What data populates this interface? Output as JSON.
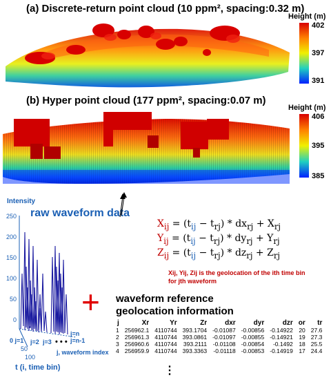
{
  "panel_a": {
    "title": "(a) Discrete-return point cloud (10 ppm², spacing:0.32 m)",
    "colorbar": {
      "label": "Height (m)",
      "ticks": [
        "402",
        "397",
        "391"
      ]
    }
  },
  "panel_b": {
    "title": "(b) Hyper point cloud (177 ppm², spacing:0.07 m)",
    "colorbar": {
      "label": "Height (m)",
      "ticks": [
        "406",
        "395",
        "385"
      ]
    }
  },
  "waveform": {
    "y_label": "Intensity",
    "y_ticks": [
      "250",
      "200",
      "150",
      "100",
      "50",
      "0"
    ],
    "x_ticks": [
      "0",
      "50",
      "100"
    ],
    "x_label": "t (i, time bin)",
    "j_labels": {
      "j1": "j=1",
      "j2": "j=2",
      "j3": "j=3",
      "jn": "j=n",
      "jn1": "j=n-1",
      "dots": "• • •"
    },
    "j_axis_label": "j, waveform index",
    "callout": "raw waveform data"
  },
  "equations": {
    "x": {
      "lhs": "X",
      "sub": "ij",
      "rest": " = (t",
      "t1sub": "ij",
      "minus": " − t",
      "t2sub": "rj",
      "d": ") * dx",
      "dsub": "rj",
      "plus": " + X",
      "psub": "rj"
    },
    "y": {
      "lhs": "Y",
      "sub": "ij",
      "rest": " = (t",
      "t1sub": "ij",
      "minus": " − t",
      "t2sub": "rj",
      "d": ") * dy",
      "dsub": "rj",
      "plus": " + Y",
      "psub": "rj"
    },
    "z": {
      "lhs": "Z",
      "sub": "ij",
      "rest": " = (t",
      "t1sub": "ij",
      "minus": " − t",
      "t2sub": "rj",
      "d": ") * dz",
      "dsub": "rj",
      "plus": " + Z",
      "psub": "rj"
    },
    "note_line1": "Xij, Yij, Zij is the geolocation of the ith time bin",
    "note_line2": "for jth waveform"
  },
  "reference": {
    "plus_sign": "+",
    "title_line1": "waveform reference",
    "title_line2": "geolocation information",
    "columns": [
      "j",
      "Xr",
      "Yr",
      "Zr",
      "dxr",
      "dyr",
      "dzr",
      "or",
      "tr"
    ],
    "rows": [
      [
        "1",
        "256962.1",
        "4110744",
        "393.1704",
        "-0.01087",
        "-0.00856",
        "-0.14922",
        "20",
        "27.6"
      ],
      [
        "2",
        "256961.3",
        "4110744",
        "393.0861",
        "-0.01097",
        "-0.00855",
        "-0.14921",
        "19",
        "27.3"
      ],
      [
        "3",
        "256960.6",
        "4110744",
        "393.2111",
        "-0.01108",
        "-0.00854",
        "-0.1492",
        "18",
        "25.5"
      ],
      [
        "4",
        "256959.9",
        "4110744",
        "393.3363",
        "-0.01118",
        "-0.00853",
        "-0.14919",
        "17",
        "24.4"
      ]
    ],
    "ellipsis": "⋮"
  }
}
